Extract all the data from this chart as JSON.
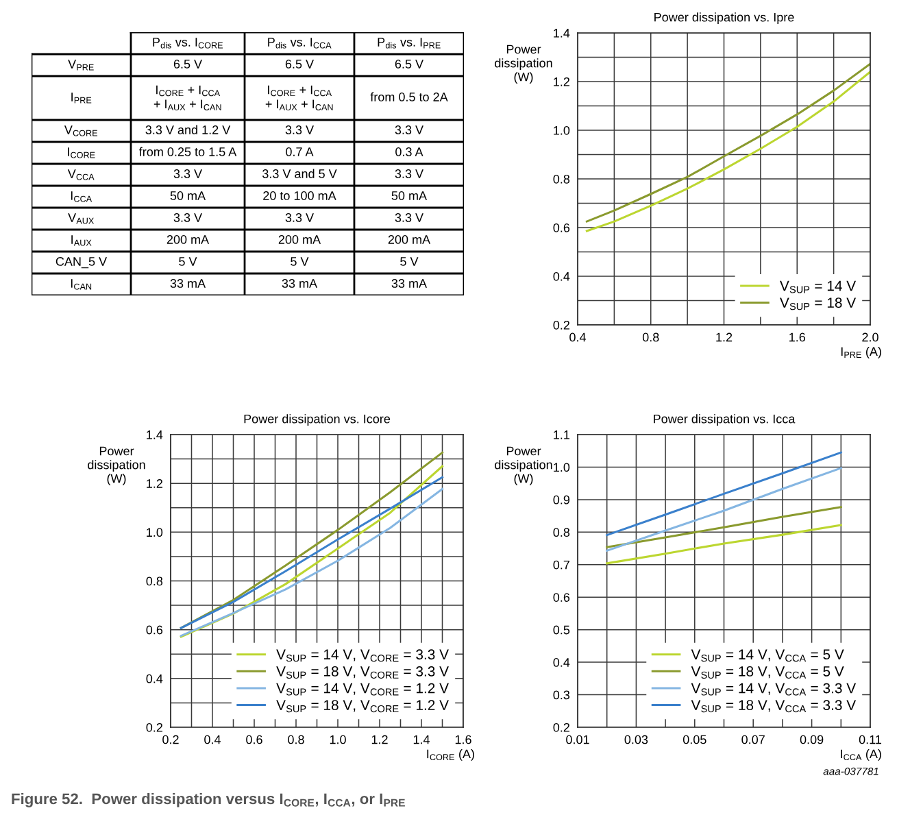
{
  "chart_data": [
    {
      "type": "other",
      "categories": [
        null,
        "P$_{dis}$ vs. I$_{CORE}$",
        "P$_{dis}$ vs. I$_{CCA}$",
        "P$_{dis}$ vs. I$_{PRE}$"
      ],
      "y_categories": [
        "V$_{PRE}$",
        "I$_{PRE}$",
        "V$_{CORE}$",
        "I$_{CORE}$",
        "V$_{CCA}$",
        "I$_{CCA}$",
        "V$_{AUX}$",
        "I$_{AUX}$",
        "CAN_5 V",
        "I$_{CAN}$"
      ],
      "cell_labels": [
        [
          "6.5 V",
          "6.5 V",
          "6.5 V"
        ],
        [
          "I$_{CORE}$ + I$_{CCA}$\n+ I$_{AUX}$ + I$_{CAN}$",
          "I$_{CORE}$ + I$_{CCA}$\n+ I$_{AUX}$ + I$_{CAN}$",
          "from 0.5 to 2A"
        ],
        [
          "3.3 V and 1.2 V",
          "3.3 V",
          "3.3 V"
        ],
        [
          "from 0.25 to 1.5 A",
          "0.7 A",
          "0.3 A"
        ],
        [
          "3.3 V",
          "3.3 V and 5 V",
          "3.3 V"
        ],
        [
          "50 mA",
          "20 to 100 mA",
          "50 mA"
        ],
        [
          "3.3 V",
          "3.3 V",
          "3.3 V"
        ],
        [
          "200 mA",
          "200 mA",
          "200 mA"
        ],
        [
          "5 V",
          "5 V",
          "5 V"
        ],
        [
          "33 mA",
          "33 mA",
          "33 mA"
        ]
      ],
      "annotations": [
        "Figure 52.  Power dissipation versus I$_{CORE}$, I$_{CCA}$, or I$_{PRE}$"
      ]
    },
    {
      "type": "line",
      "title": "Power dissipation vs. Ipre",
      "xlabel": "I$_{PRE}$ (A)",
      "ylabel": "Power\ndissipation\n(W)",
      "xlim": [
        0.4,
        2.0
      ],
      "ylim": [
        0.2,
        1.4
      ],
      "xticks": [
        0.4,
        {
          "value": 0.6,
          "label": null
        },
        0.8,
        {
          "value": 1.0,
          "label": null
        },
        1.2,
        {
          "value": 1.4,
          "label": null
        },
        1.6,
        {
          "value": 1.8,
          "label": null
        },
        {
          "value": 2.0,
          "label": "2.0"
        }
      ],
      "yticks": [
        0.2,
        {
          "value": 0.3,
          "label": null
        },
        0.4,
        {
          "value": 0.5,
          "label": null
        },
        0.6,
        {
          "value": 0.7,
          "label": null
        },
        0.8,
        {
          "value": 0.9,
          "label": null
        },
        {
          "value": 1.0,
          "label": "1.0"
        },
        {
          "value": 1.1,
          "label": null
        },
        1.2,
        {
          "value": 1.3,
          "label": null
        },
        1.4
      ],
      "grid": true,
      "legend": "lower right",
      "series": [
        {
          "name": "V$_{SUP}$ = 14 V",
          "color": "#bcd630",
          "x": [
            0.45,
            0.6,
            0.8,
            1.0,
            1.2,
            1.4,
            1.6,
            1.8,
            2.0
          ],
          "values": [
            0.586,
            0.625,
            0.69,
            0.76,
            0.839,
            0.924,
            1.014,
            1.118,
            1.24
          ]
        },
        {
          "name": "V$_{SUP}$ = 18 V",
          "color": "#8a9a2e",
          "x": [
            0.45,
            0.6,
            0.8,
            1.0,
            1.2,
            1.4,
            1.6,
            1.8,
            2.0
          ],
          "values": [
            0.625,
            0.67,
            0.738,
            0.808,
            0.893,
            0.977,
            1.065,
            1.163,
            1.273
          ]
        }
      ]
    },
    {
      "type": "line",
      "title": "Power dissipation vs. Icore",
      "xlabel": "I$_{CORE}$ (A)",
      "ylabel": "Power\ndissipation\n(W)",
      "xlim": [
        0.2,
        1.6
      ],
      "ylim": [
        0.2,
        1.4
      ],
      "xticks": [
        0.2,
        {
          "value": 0.3,
          "label": null
        },
        0.4,
        {
          "value": 0.5,
          "label": null
        },
        0.6,
        {
          "value": 0.7,
          "label": null
        },
        0.8,
        {
          "value": 0.9,
          "label": null
        },
        {
          "value": 1.0,
          "label": "1.0"
        },
        {
          "value": 1.1,
          "label": null
        },
        1.2,
        {
          "value": 1.3,
          "label": null
        },
        1.4,
        {
          "value": 1.5,
          "label": null
        },
        1.6
      ],
      "yticks": [
        0.2,
        {
          "value": 0.3,
          "label": null
        },
        0.4,
        {
          "value": 0.5,
          "label": null
        },
        0.6,
        {
          "value": 0.7,
          "label": null
        },
        0.8,
        {
          "value": 0.9,
          "label": null
        },
        {
          "value": 1.0,
          "label": "1.0"
        },
        {
          "value": 1.1,
          "label": null
        },
        1.2,
        {
          "value": 1.3,
          "label": null
        },
        1.4
      ],
      "grid": true,
      "legend": "lower right",
      "series": [
        {
          "name": "V$_{SUP}$ = 14 V, V$_{CORE}$ = 3.3 V",
          "color": "#bcd630",
          "x": [
            0.25,
            0.5,
            0.75,
            1.0,
            1.25,
            1.5
          ],
          "values": [
            0.571,
            0.666,
            0.787,
            0.933,
            1.079,
            1.27
          ]
        },
        {
          "name": "V$_{SUP}$ = 18 V, V$_{CORE}$ = 3.3 V",
          "color": "#8a9a2e",
          "x": [
            0.25,
            0.5,
            0.75,
            1.0,
            1.25,
            1.5
          ],
          "values": [
            0.607,
            0.722,
            0.863,
            1.009,
            1.163,
            1.326
          ]
        },
        {
          "name": "V$_{SUP}$ = 14 V, V$_{CORE}$ = 1.2 V",
          "color": "#85b6e2",
          "x": [
            0.25,
            0.5,
            0.75,
            1.0,
            1.25,
            1.5
          ],
          "values": [
            0.575,
            0.668,
            0.765,
            0.883,
            1.017,
            1.177
          ]
        },
        {
          "name": "V$_{SUP}$ = 18 V, V$_{CORE}$ = 1.2 V",
          "color": "#3a80cc",
          "x": [
            0.25,
            0.5,
            0.75,
            1.0,
            1.25,
            1.5
          ],
          "values": [
            0.607,
            0.714,
            0.84,
            0.97,
            1.096,
            1.225
          ]
        }
      ]
    },
    {
      "type": "line",
      "title": "Power dissipation vs. Icca",
      "xlabel": "I$_{CCA}$ (A)",
      "ylabel": "Power\ndissipation\n(W)",
      "xlim": [
        0.01,
        0.11
      ],
      "ylim": [
        0.2,
        1.1
      ],
      "xticks": [
        0.01,
        {
          "value": 0.02,
          "label": null
        },
        0.03,
        {
          "value": 0.04,
          "label": null
        },
        0.05,
        {
          "value": 0.06,
          "label": null
        },
        0.07,
        {
          "value": 0.08,
          "label": null
        },
        0.09,
        {
          "value": 0.1,
          "label": null
        },
        0.11
      ],
      "yticks": [
        0.2,
        0.3,
        0.4,
        0.5,
        0.6,
        0.7,
        0.8,
        0.9,
        {
          "value": 1.0,
          "label": "1.0"
        },
        1.1
      ],
      "grid": true,
      "legend": "lower right",
      "annotations": [
        "aaa-037781"
      ],
      "series": [
        {
          "name": "V$_{SUP}$ = 14 V, V$_{CCA}$ = 5 V",
          "color": "#bcd630",
          "x": [
            0.02,
            0.04,
            0.06,
            0.08,
            0.1
          ],
          "values": [
            0.704,
            0.734,
            0.765,
            0.792,
            0.822
          ]
        },
        {
          "name": "V$_{SUP}$ = 18 V, V$_{CCA}$ = 5 V",
          "color": "#8a9a2e",
          "x": [
            0.02,
            0.04,
            0.06,
            0.08,
            0.1
          ],
          "values": [
            0.754,
            0.784,
            0.815,
            0.847,
            0.877
          ]
        },
        {
          "name": "V$_{SUP}$ = 14 V, V$_{CCA}$ = 3.3 V",
          "color": "#85b6e2",
          "x": [
            0.02,
            0.04,
            0.06,
            0.08,
            0.1
          ],
          "values": [
            0.743,
            0.805,
            0.866,
            0.933,
            0.997
          ]
        },
        {
          "name": "V$_{SUP}$ = 18 V, V$_{CCA}$ = 3.3 V",
          "color": "#3a80cc",
          "x": [
            0.02,
            0.04,
            0.06,
            0.08,
            0.1
          ],
          "values": [
            0.791,
            0.854,
            0.918,
            0.981,
            1.045
          ]
        }
      ]
    }
  ]
}
